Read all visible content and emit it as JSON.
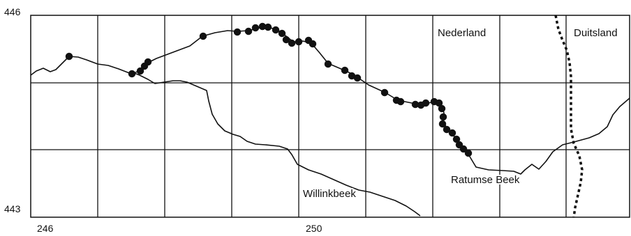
{
  "map": {
    "axis": {
      "y_top": "446",
      "y_bottom": "443",
      "x_left": "246",
      "x_mid": "250"
    },
    "labels": {
      "country_west": "Nederland",
      "country_east": "Duitsland",
      "stream_1": "Willinkbeek",
      "stream_2": "Ratumse Beek"
    },
    "colors": {
      "lines": "#111111",
      "points": "#111111",
      "background": "#ffffff"
    }
  }
}
